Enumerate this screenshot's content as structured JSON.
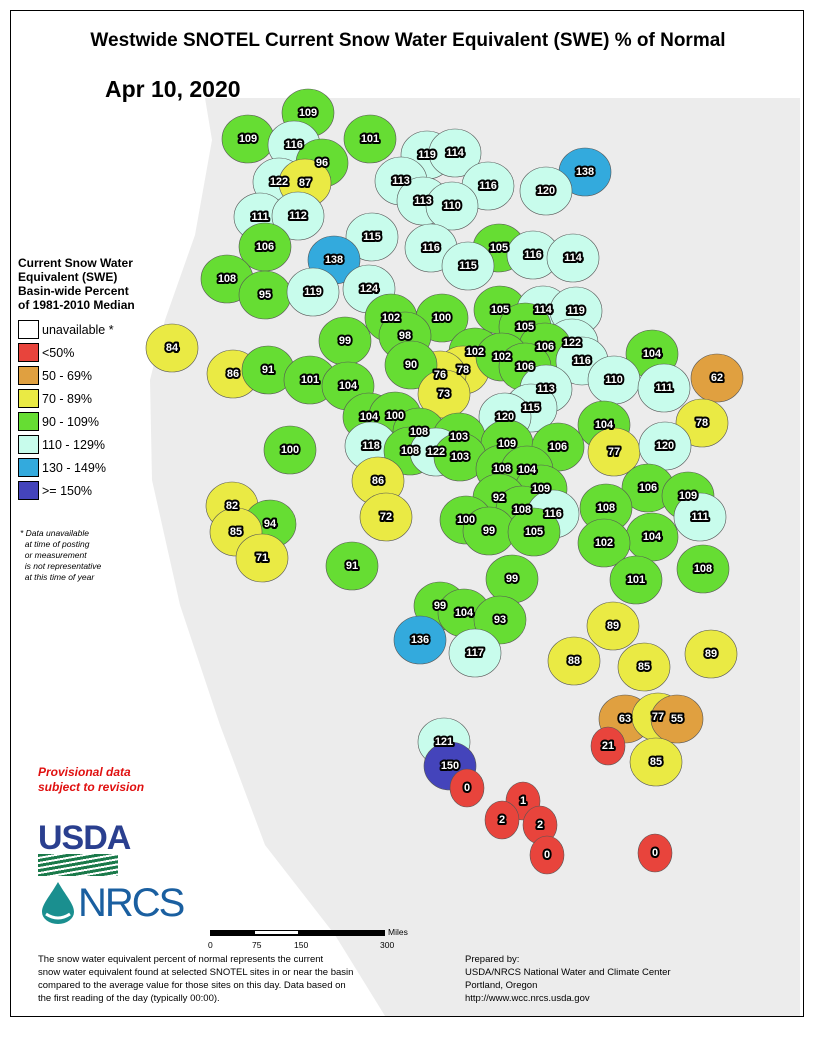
{
  "title": "Westwide SNOTEL Current Snow Water Equivalent (SWE) % of Normal",
  "date": "Apr 10, 2020",
  "legend": {
    "heading": [
      "Current Snow Water",
      "Equivalent (SWE)",
      "Basin-wide Percent",
      "of 1981-2010 Median"
    ],
    "items": [
      {
        "label": "unavailable *",
        "color": "#ffffff"
      },
      {
        "label": "<50%",
        "color": "#e8443c"
      },
      {
        "label": "50 - 69%",
        "color": "#e0a040"
      },
      {
        "label": "70 - 89%",
        "color": "#eaea44"
      },
      {
        "label": "90 - 109%",
        "color": "#66dd33"
      },
      {
        "label": "110 - 129%",
        "color": "#c8fcec"
      },
      {
        "label": "130 - 149%",
        "color": "#33aadd"
      },
      {
        "label": ">= 150%",
        "color": "#4444bb"
      }
    ],
    "note": [
      "* Data unavailable",
      "at time of posting",
      "or measurement",
      "is not representative",
      "at this time of year"
    ]
  },
  "provisional": [
    "Provisional data",
    "subject to revision"
  ],
  "logos": {
    "usda": "USDA",
    "nrcs": "NRCS"
  },
  "scale": {
    "unit": "Miles",
    "ticks": [
      "0",
      "75",
      "150",
      "300"
    ]
  },
  "footer_left": [
    "The snow water equivalent percent of normal represents the current",
    "snow water equivalent found at selected SNOTEL sites in or near the basin",
    "compared to the average value for those sites on this day. Data based on",
    "the first reading of the day (typically 00:00)."
  ],
  "footer_right": [
    "Prepared by:",
    "USDA/NRCS National Water and Climate Center",
    "Portland, Oregon",
    "http://www.wcc.nrcs.usda.gov"
  ],
  "basin_values": [
    109,
    109,
    116,
    96,
    101,
    119,
    114,
    138,
    122,
    87,
    113,
    116,
    120,
    113,
    110,
    111,
    112,
    115,
    116,
    105,
    116,
    114,
    106,
    138,
    108,
    115,
    95,
    119,
    124,
    105,
    114,
    119,
    102,
    100,
    105,
    98,
    99,
    122,
    106,
    104,
    84,
    62,
    102,
    78,
    76,
    102,
    106,
    116,
    90,
    86,
    91,
    101,
    104,
    113,
    110,
    111,
    73,
    115,
    120,
    104,
    100,
    104,
    78,
    108,
    103,
    109,
    118,
    108,
    122,
    103,
    106,
    77,
    120,
    100,
    108,
    104,
    86,
    109,
    106,
    109,
    82,
    92,
    108,
    116,
    108,
    111,
    72,
    94,
    100,
    99,
    105,
    85,
    104,
    102,
    71,
    91,
    108,
    101,
    99,
    99,
    104,
    93,
    89,
    89,
    136,
    117,
    88,
    85,
    63,
    77,
    55,
    21,
    85,
    121,
    150,
    0,
    1,
    2,
    2,
    0,
    0
  ]
}
